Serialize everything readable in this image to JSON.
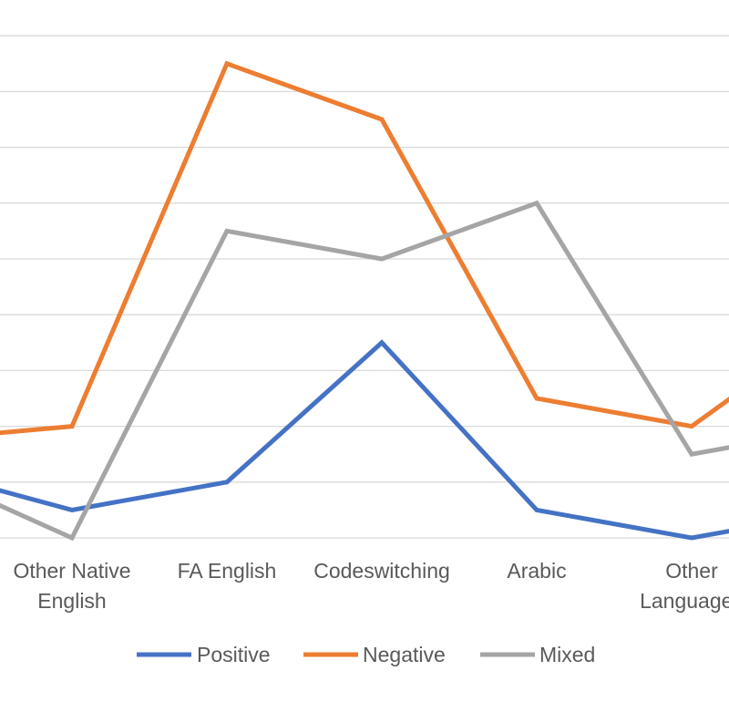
{
  "chart_data": {
    "type": "line",
    "categories": [
      "",
      "Other Native English",
      "FA English",
      "Codeswitching",
      "Arabic",
      "Other Languages",
      ""
    ],
    "category_lines": [
      [
        ""
      ],
      [
        "Other Native",
        "English"
      ],
      [
        "FA English"
      ],
      [
        "Codeswitching"
      ],
      [
        "Arabic"
      ],
      [
        "Other",
        "Languages"
      ],
      [
        ""
      ]
    ],
    "series": [
      {
        "name": "Positive",
        "color": "#4472C4",
        "values": [
          2.5,
          1,
          2,
          7,
          1,
          0,
          1
        ]
      },
      {
        "name": "Negative",
        "color": "#ED7D31",
        "values": [
          3.5,
          4,
          17,
          15,
          5,
          4,
          8
        ]
      },
      {
        "name": "Mixed",
        "color": "#A5A5A5",
        "values": [
          2.5,
          0,
          11,
          10,
          12,
          3,
          4
        ]
      }
    ],
    "ylim": [
      0,
      19
    ],
    "grid": true,
    "legend": "bottom",
    "title": "",
    "xlabel": "",
    "ylabel": ""
  }
}
